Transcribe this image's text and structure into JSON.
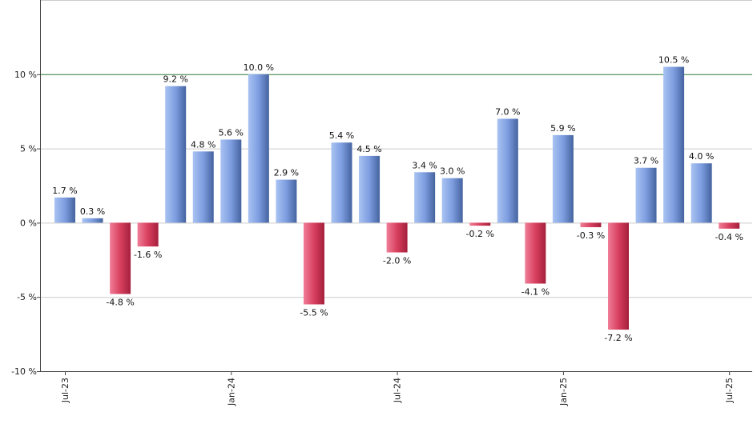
{
  "chart_data": {
    "type": "bar",
    "x_tick_labels": [
      "Jul-23",
      "Jan-24",
      "Jul-24",
      "Jan-25",
      "Jul-25"
    ],
    "x_tick_positions": [
      0,
      6,
      12,
      18,
      24
    ],
    "values": [
      1.7,
      0.3,
      -4.8,
      -1.6,
      9.2,
      4.8,
      5.6,
      10.0,
      2.9,
      -5.5,
      5.4,
      4.5,
      -2.0,
      3.4,
      3.0,
      -0.2,
      7.0,
      -4.1,
      5.9,
      -0.3,
      -7.2,
      3.7,
      10.5,
      4.0,
      -0.4
    ],
    "data_labels": [
      "1.7 %",
      "0.3 %",
      "-4.8 %",
      "-1.6 %",
      "9.2 %",
      "4.8 %",
      "5.6 %",
      "10.0 %",
      "2.9 %",
      "-5.5 %",
      "5.4 %",
      "4.5 %",
      "-2.0 %",
      "3.4 %",
      "3.0 %",
      "-0.2 %",
      "7.0 %",
      "-4.1 %",
      "5.9 %",
      "-0.3 %",
      "-7.2 %",
      "3.7 %",
      "10.5 %",
      "4.0 %",
      "-0.4 %"
    ],
    "y_ticks": [
      10,
      5,
      0,
      -5,
      -10
    ],
    "y_tick_labels": [
      "10 %",
      "5 %",
      "0 %",
      "-5 %",
      "-10 %"
    ],
    "ylim": [
      -10,
      15
    ],
    "reference_line": 10,
    "grid": true,
    "colors": {
      "positive_light": "#a9c3f2",
      "positive_dark": "#45639f",
      "negative_light": "#f07e98",
      "negative_dark": "#a51f3c",
      "reference_line": "#2e7d32",
      "grid": "#cccccc",
      "axis": "#444444"
    }
  }
}
